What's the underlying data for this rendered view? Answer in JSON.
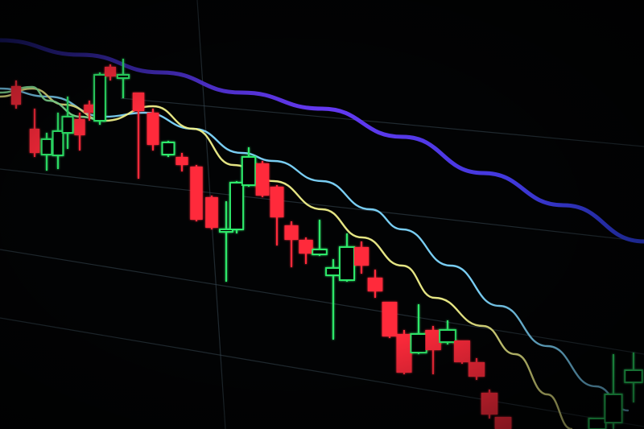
{
  "chart_data": {
    "type": "candlestick",
    "title": "",
    "xlabel": "",
    "ylabel": "",
    "grid": true,
    "legend": "none",
    "colors": {
      "up": "#2ee86a",
      "down": "#ff2a3a",
      "background": "#020304",
      "grid": "#3a4a55"
    },
    "candles": [
      {
        "o": 426,
        "c": 403,
        "h": 433,
        "l": 398
      },
      {
        "o": 373,
        "c": 343,
        "h": 398,
        "l": 338
      },
      {
        "o": 341,
        "c": 360,
        "h": 368,
        "l": 321
      },
      {
        "o": 340,
        "c": 370,
        "h": 393,
        "l": 323
      },
      {
        "o": 368,
        "c": 388,
        "h": 413,
        "l": 348
      },
      {
        "o": 385,
        "c": 365,
        "h": 393,
        "l": 346
      },
      {
        "o": 403,
        "c": 393,
        "h": 408,
        "l": 383
      },
      {
        "o": 383,
        "c": 440,
        "h": 443,
        "l": 378
      },
      {
        "o": 450,
        "c": 438,
        "h": 453,
        "l": 433
      },
      {
        "o": 436,
        "c": 440,
        "h": 460,
        "l": 411
      },
      {
        "o": 418,
        "c": 395,
        "h": 418,
        "l": 311
      },
      {
        "o": 393,
        "c": 353,
        "h": 398,
        "l": 346
      },
      {
        "o": 341,
        "c": 356,
        "h": 358,
        "l": 338
      },
      {
        "o": 338,
        "c": 328,
        "h": 343,
        "l": 320
      },
      {
        "o": 326,
        "c": 260,
        "h": 328,
        "l": 258
      },
      {
        "o": 288,
        "c": 250,
        "h": 290,
        "l": 248
      },
      {
        "o": 245,
        "c": 248,
        "h": 283,
        "l": 183
      },
      {
        "o": 248,
        "c": 306,
        "h": 308,
        "l": 243
      },
      {
        "o": 303,
        "c": 338,
        "h": 350,
        "l": 301
      },
      {
        "o": 330,
        "c": 290,
        "h": 333,
        "l": 288
      },
      {
        "o": 301,
        "c": 263,
        "h": 303,
        "l": 228
      },
      {
        "o": 253,
        "c": 235,
        "h": 258,
        "l": 201
      },
      {
        "o": 235,
        "c": 218,
        "h": 238,
        "l": 205
      },
      {
        "o": 217,
        "c": 223,
        "h": 260,
        "l": 215
      },
      {
        "o": 191,
        "c": 200,
        "h": 211,
        "l": 111
      },
      {
        "o": 185,
        "c": 226,
        "h": 243,
        "l": 183
      },
      {
        "o": 226,
        "c": 203,
        "h": 233,
        "l": 193
      },
      {
        "o": 188,
        "c": 171,
        "h": 198,
        "l": 163
      },
      {
        "o": 158,
        "c": 115,
        "h": 158,
        "l": 113
      },
      {
        "o": 118,
        "c": 70,
        "h": 123,
        "l": 68
      },
      {
        "o": 95,
        "c": 118,
        "h": 155,
        "l": 93
      },
      {
        "o": 123,
        "c": 98,
        "h": 128,
        "l": 68
      },
      {
        "o": 108,
        "c": 123,
        "h": 135,
        "l": 105
      },
      {
        "o": 110,
        "c": 83,
        "h": 110,
        "l": 81
      },
      {
        "o": 83,
        "c": 65,
        "h": 88,
        "l": 61
      },
      {
        "o": 45,
        "c": 18,
        "h": 49,
        "l": 13
      },
      {
        "o": 15,
        "c": 0,
        "h": 15,
        "l": 0
      },
      {
        "o": 0,
        "c": 13,
        "h": 13,
        "l": 0
      },
      {
        "o": 8,
        "c": 43,
        "h": 93,
        "l": 0
      },
      {
        "o": 58,
        "c": 73,
        "h": 95,
        "l": 33
      }
    ],
    "series": [
      {
        "color": "#5a3cff",
        "values": [
          [
            0,
            483
          ],
          [
            10,
            465
          ],
          [
            20,
            443
          ],
          [
            30,
            418
          ],
          [
            40,
            398
          ],
          [
            50,
            363
          ],
          [
            60,
            318
          ],
          [
            70,
            278
          ],
          [
            80,
            233
          ]
        ]
      },
      {
        "color": "#7fd8ff",
        "values": [
          [
            0,
            423
          ],
          [
            6,
            413
          ],
          [
            13,
            388
          ],
          [
            18,
            393
          ],
          [
            24,
            373
          ],
          [
            30,
            343
          ],
          [
            34,
            333
          ],
          [
            40,
            308
          ],
          [
            46,
            273
          ],
          [
            50,
            248
          ],
          [
            56,
            203
          ],
          [
            62,
            153
          ],
          [
            68,
            103
          ],
          [
            74,
            53
          ],
          [
            78,
            23
          ]
        ]
      },
      {
        "color": "#f0f08a",
        "values": [
          [
            0,
            413
          ],
          [
            4,
            423
          ],
          [
            8,
            403
          ],
          [
            13,
            383
          ],
          [
            19,
            401
          ],
          [
            24,
            373
          ],
          [
            29,
            328
          ],
          [
            34,
            308
          ],
          [
            40,
            273
          ],
          [
            45,
            238
          ],
          [
            50,
            203
          ],
          [
            54,
            163
          ],
          [
            60,
            128
          ],
          [
            64,
            93
          ],
          [
            68,
            43
          ],
          [
            71,
            0
          ]
        ]
      },
      {
        "color": "#8ef0a0",
        "values": [
          [
            0,
            418
          ],
          [
            4,
            425
          ],
          [
            6,
            408
          ],
          [
            10,
            388
          ],
          [
            13,
            383
          ]
        ]
      }
    ]
  }
}
